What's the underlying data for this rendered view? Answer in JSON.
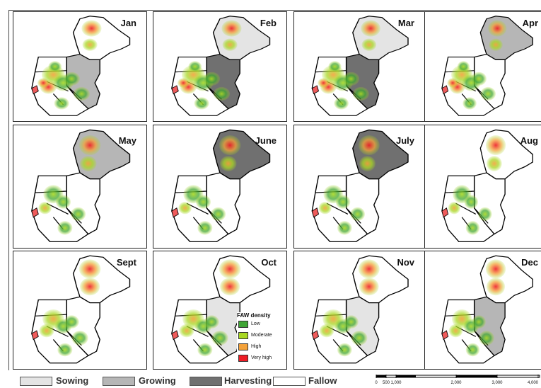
{
  "months": [
    "Jan",
    "Feb",
    "Mar",
    "Apr",
    "May",
    "June",
    "July",
    "Aug",
    "Sept",
    "Oct",
    "Nov",
    "Dec"
  ],
  "density_legend": {
    "title": "FAW density",
    "items": [
      {
        "label": "Low",
        "color": "#3fa535"
      },
      {
        "label": "Moderate",
        "color": "#a8d822"
      },
      {
        "label": "High",
        "color": "#f4a23a"
      },
      {
        "label": "Very high",
        "color": "#ee1c25"
      }
    ]
  },
  "season_legend": [
    {
      "label": "Sowing",
      "color": "#e4e4e4"
    },
    {
      "label": "Growing",
      "color": "#b6b6b6"
    },
    {
      "label": "Harvesting",
      "color": "#707070"
    },
    {
      "label": "Fallow",
      "color": "#ffffff"
    }
  ],
  "scale_bar": {
    "ticks": [
      "0",
      "500",
      "1,000",
      "2,000",
      "3,000",
      "4,000"
    ]
  },
  "season_by_month": [
    {
      "north": "fallow",
      "east": "growing",
      "west": "fallow"
    },
    {
      "north": "sowing",
      "east": "harvesting",
      "west": "fallow"
    },
    {
      "north": "sowing",
      "east": "harvesting",
      "west": "fallow"
    },
    {
      "north": "growing",
      "east": "fallow",
      "west": "fallow"
    },
    {
      "north": "growing",
      "east": "fallow",
      "west": "fallow"
    },
    {
      "north": "harvesting",
      "east": "fallow",
      "west": "fallow"
    },
    {
      "north": "harvesting",
      "east": "fallow",
      "west": "fallow"
    },
    {
      "north": "fallow",
      "east": "fallow",
      "west": "fallow"
    },
    {
      "north": "fallow",
      "east": "fallow",
      "west": "fallow"
    },
    {
      "north": "fallow",
      "east": "sowing",
      "west": "fallow"
    },
    {
      "north": "fallow",
      "east": "sowing",
      "west": "fallow"
    },
    {
      "north": "fallow",
      "east": "growing",
      "west": "fallow"
    }
  ]
}
